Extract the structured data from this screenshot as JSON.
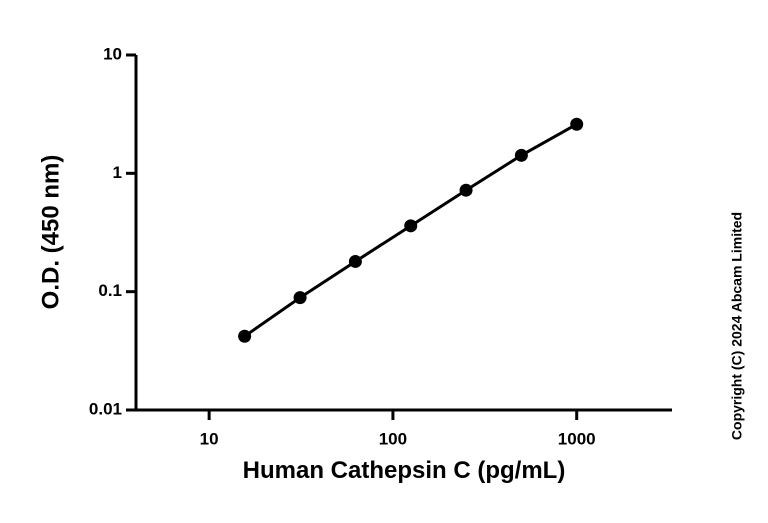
{
  "chart_data": {
    "type": "scatter",
    "x_label": "Human Cathepsin C (pg/mL)",
    "y_label": "O.D. (450 nm)",
    "copyright": "Copyright (C) 2024 Abcam Limited",
    "x_log": true,
    "y_log": true,
    "xlim": [
      4,
      3300
    ],
    "ylim": [
      0.01,
      10
    ],
    "xticks": [
      10,
      100,
      1000
    ],
    "yticks": [
      0.01,
      0.1,
      1,
      10
    ],
    "connect": true,
    "series": [
      {
        "color": "#000000",
        "x": [
          15.6,
          31.25,
          62.5,
          125,
          250,
          500,
          1000
        ],
        "values": [
          0.042,
          0.089,
          0.18,
          0.36,
          0.72,
          1.42,
          2.6
        ]
      }
    ]
  }
}
